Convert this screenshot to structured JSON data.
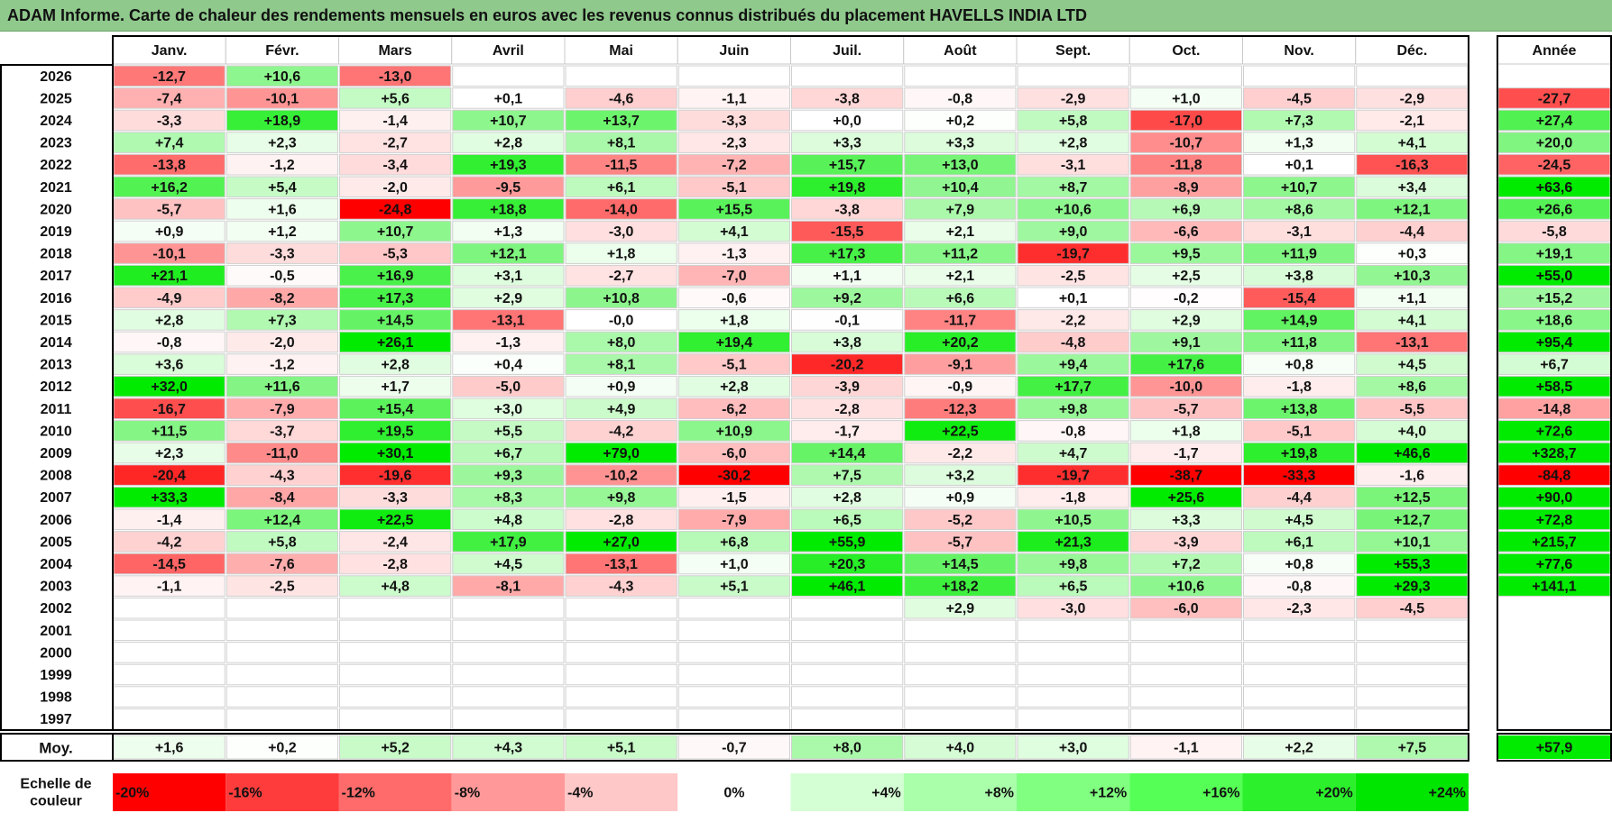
{
  "title": "ADAM Informe. Carte de chaleur des rendements mensuels en euros avec les revenus connus distribués du placement HAVELLS INDIA LTD",
  "chart_data": {
    "type": "heatmap",
    "columns": [
      "Janv.",
      "Févr.",
      "Mars",
      "Avril",
      "Mai",
      "Juin",
      "Juil.",
      "Août",
      "Sept.",
      "Oct.",
      "Nov.",
      "Déc."
    ],
    "year_column_label": "Année",
    "rows": [
      {
        "year": "2026",
        "values": [
          "-12,7",
          "+10,6",
          "-13,0",
          "",
          "",
          "",
          "",
          "",
          "",
          "",
          "",
          ""
        ],
        "annual": ""
      },
      {
        "year": "2025",
        "values": [
          "-7,4",
          "-10,1",
          "+5,6",
          "+0,1",
          "-4,6",
          "-1,1",
          "-3,8",
          "-0,8",
          "-2,9",
          "+1,0",
          "-4,5",
          "-2,9"
        ],
        "annual": "-27,7"
      },
      {
        "year": "2024",
        "values": [
          "-3,3",
          "+18,9",
          "-1,4",
          "+10,7",
          "+13,7",
          "-3,3",
          "+0,0",
          "+0,2",
          "+5,8",
          "-17,0",
          "+7,3",
          "-2,1"
        ],
        "annual": "+27,4"
      },
      {
        "year": "2023",
        "values": [
          "+7,4",
          "+2,3",
          "-2,7",
          "+2,8",
          "+8,1",
          "-2,3",
          "+3,3",
          "+3,3",
          "+2,8",
          "-10,7",
          "+1,3",
          "+4,1"
        ],
        "annual": "+20,0"
      },
      {
        "year": "2022",
        "values": [
          "-13,8",
          "-1,2",
          "-3,4",
          "+19,3",
          "-11,5",
          "-7,2",
          "+15,7",
          "+13,0",
          "-3,1",
          "-11,8",
          "+0,1",
          "-16,3"
        ],
        "annual": "-24,5"
      },
      {
        "year": "2021",
        "values": [
          "+16,2",
          "+5,4",
          "-2,0",
          "-9,5",
          "+6,1",
          "-5,1",
          "+19,8",
          "+10,4",
          "+8,7",
          "-8,9",
          "+10,7",
          "+3,4"
        ],
        "annual": "+63,6"
      },
      {
        "year": "2020",
        "values": [
          "-5,7",
          "+1,6",
          "-24,8",
          "+18,8",
          "-14,0",
          "+15,5",
          "-3,8",
          "+7,9",
          "+10,6",
          "+6,9",
          "+8,6",
          "+12,1"
        ],
        "annual": "+26,6"
      },
      {
        "year": "2019",
        "values": [
          "+0,9",
          "+1,2",
          "+10,7",
          "+1,3",
          "-3,0",
          "+4,1",
          "-15,5",
          "+2,1",
          "+9,0",
          "-6,6",
          "-3,1",
          "-4,4"
        ],
        "annual": "-5,8"
      },
      {
        "year": "2018",
        "values": [
          "-10,1",
          "-3,3",
          "-5,3",
          "+12,1",
          "+1,8",
          "-1,3",
          "+17,3",
          "+11,2",
          "-19,7",
          "+9,5",
          "+11,9",
          "+0,3"
        ],
        "annual": "+19,1"
      },
      {
        "year": "2017",
        "values": [
          "+21,1",
          "-0,5",
          "+16,9",
          "+3,1",
          "-2,7",
          "-7,0",
          "+1,1",
          "+2,1",
          "-2,5",
          "+2,5",
          "+3,8",
          "+10,3"
        ],
        "annual": "+55,0"
      },
      {
        "year": "2016",
        "values": [
          "-4,9",
          "-8,2",
          "+17,3",
          "+2,9",
          "+10,8",
          "-0,6",
          "+9,2",
          "+6,6",
          "+0,1",
          "-0,2",
          "-15,4",
          "+1,1"
        ],
        "annual": "+15,2"
      },
      {
        "year": "2015",
        "values": [
          "+2,8",
          "+7,3",
          "+14,5",
          "-13,1",
          "-0,0",
          "+1,8",
          "-0,1",
          "-11,7",
          "-2,2",
          "+2,9",
          "+14,9",
          "+4,1"
        ],
        "annual": "+18,6"
      },
      {
        "year": "2014",
        "values": [
          "-0,8",
          "-2,0",
          "+26,1",
          "-1,3",
          "+8,0",
          "+19,4",
          "+3,8",
          "+20,2",
          "-4,8",
          "+9,1",
          "+11,8",
          "-13,1"
        ],
        "annual": "+95,4"
      },
      {
        "year": "2013",
        "values": [
          "+3,6",
          "-1,2",
          "+2,8",
          "+0,4",
          "+8,1",
          "-5,1",
          "-20,2",
          "-9,1",
          "+9,4",
          "+17,6",
          "+0,8",
          "+4,5"
        ],
        "annual": "+6,7"
      },
      {
        "year": "2012",
        "values": [
          "+32,0",
          "+11,6",
          "+1,7",
          "-5,0",
          "+0,9",
          "+2,8",
          "-3,9",
          "-0,9",
          "+17,7",
          "-10,0",
          "-1,8",
          "+8,6"
        ],
        "annual": "+58,5"
      },
      {
        "year": "2011",
        "values": [
          "-16,7",
          "-7,9",
          "+15,4",
          "+3,0",
          "+4,9",
          "-6,2",
          "-2,8",
          "-12,3",
          "+9,8",
          "-5,7",
          "+13,8",
          "-5,5"
        ],
        "annual": "-14,8"
      },
      {
        "year": "2010",
        "values": [
          "+11,5",
          "-3,7",
          "+19,5",
          "+5,5",
          "-4,2",
          "+10,9",
          "-1,7",
          "+22,5",
          "-0,8",
          "+1,8",
          "-5,1",
          "+4,0"
        ],
        "annual": "+72,6"
      },
      {
        "year": "2009",
        "values": [
          "+2,3",
          "-11,0",
          "+30,1",
          "+6,7",
          "+79,0",
          "-6,0",
          "+14,4",
          "-2,2",
          "+4,7",
          "-1,7",
          "+19,8",
          "+46,6"
        ],
        "annual": "+328,7"
      },
      {
        "year": "2008",
        "values": [
          "-20,4",
          "-4,3",
          "-19,6",
          "+9,3",
          "-10,2",
          "-30,2",
          "+7,5",
          "+3,2",
          "-19,7",
          "-38,7",
          "-33,3",
          "-1,6"
        ],
        "annual": "-84,8"
      },
      {
        "year": "2007",
        "values": [
          "+33,3",
          "-8,4",
          "-3,3",
          "+8,3",
          "+9,8",
          "-1,5",
          "+2,8",
          "+0,9",
          "-1,8",
          "+25,6",
          "-4,4",
          "+12,5"
        ],
        "annual": "+90,0"
      },
      {
        "year": "2006",
        "values": [
          "-1,4",
          "+12,4",
          "+22,5",
          "+4,8",
          "-2,8",
          "-7,9",
          "+6,5",
          "-5,2",
          "+10,5",
          "+3,3",
          "+4,5",
          "+12,7"
        ],
        "annual": "+72,8"
      },
      {
        "year": "2005",
        "values": [
          "-4,2",
          "+5,8",
          "-2,4",
          "+17,9",
          "+27,0",
          "+6,8",
          "+55,9",
          "-5,7",
          "+21,3",
          "-3,9",
          "+6,1",
          "+10,1"
        ],
        "annual": "+215,7"
      },
      {
        "year": "2004",
        "values": [
          "-14,5",
          "-7,6",
          "-2,8",
          "+4,5",
          "-13,1",
          "+1,0",
          "+20,3",
          "+14,5",
          "+9,8",
          "+7,2",
          "+0,8",
          "+55,3"
        ],
        "annual": "+77,6"
      },
      {
        "year": "2003",
        "values": [
          "-1,1",
          "-2,5",
          "+4,8",
          "-8,1",
          "-4,3",
          "+5,1",
          "+46,1",
          "+18,2",
          "+6,5",
          "+10,6",
          "-0,8",
          "+29,3"
        ],
        "annual": "+141,1"
      },
      {
        "year": "2002",
        "values": [
          "",
          "",
          "",
          "",
          "",
          "",
          "",
          "+2,9",
          "-3,0",
          "-6,0",
          "-2,3",
          "-4,5"
        ],
        "annual": ""
      },
      {
        "year": "2001",
        "values": [
          "",
          "",
          "",
          "",
          "",
          "",
          "",
          "",
          "",
          "",
          "",
          ""
        ],
        "annual": ""
      },
      {
        "year": "2000",
        "values": [
          "",
          "",
          "",
          "",
          "",
          "",
          "",
          "",
          "",
          "",
          "",
          ""
        ],
        "annual": ""
      },
      {
        "year": "1999",
        "values": [
          "",
          "",
          "",
          "",
          "",
          "",
          "",
          "",
          "",
          "",
          "",
          ""
        ],
        "annual": ""
      },
      {
        "year": "1998",
        "values": [
          "",
          "",
          "",
          "",
          "",
          "",
          "",
          "",
          "",
          "",
          "",
          ""
        ],
        "annual": ""
      },
      {
        "year": "1997",
        "values": [
          "",
          "",
          "",
          "",
          "",
          "",
          "",
          "",
          "",
          "",
          "",
          ""
        ],
        "annual": ""
      }
    ],
    "average_row": {
      "label": "Moy.",
      "values": [
        "+1,6",
        "+0,2",
        "+5,2",
        "+4,3",
        "+5,1",
        "-0,7",
        "+8,0",
        "+4,0",
        "+3,0",
        "-1,1",
        "+2,2",
        "+7,5"
      ],
      "annual": "+57,9"
    },
    "color_scale": {
      "label": "Echelle de couleur",
      "stops": [
        "-20%",
        "-16%",
        "-12%",
        "-8%",
        "-4%",
        "0%",
        "+4%",
        "+8%",
        "+12%",
        "+16%",
        "+20%",
        "+24%"
      ],
      "colors": [
        "#ff0000",
        "#ff3c3c",
        "#ff6b6b",
        "#ff9999",
        "#ffc8c8",
        "#ffffff",
        "#d4ffd4",
        "#aaffaa",
        "#80ff80",
        "#55ff55",
        "#2bf02b",
        "#00e600"
      ]
    },
    "colors": {
      "negative_max": "#ff0000",
      "neutral": "#ffffff",
      "positive_max": "#00e600",
      "title_bar": "#8fc98c"
    }
  }
}
